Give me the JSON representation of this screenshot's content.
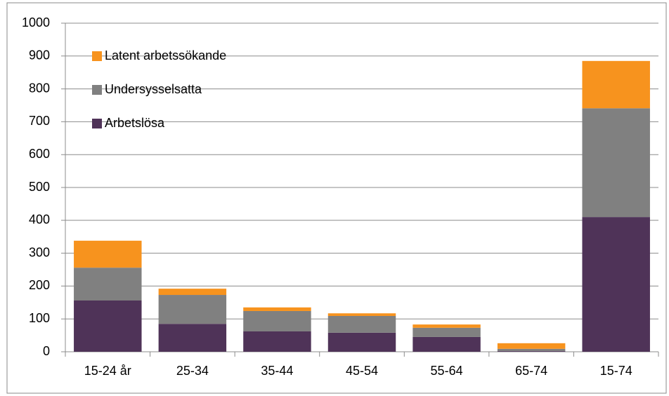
{
  "chart_data": {
    "type": "stacked-bar",
    "categories": [
      "15-24 år",
      "25-34",
      "35-44",
      "45-54",
      "55-64",
      "65-74",
      "15-74"
    ],
    "series": [
      {
        "name": "Arbetslösa",
        "color": "#4f3358",
        "values": [
          156,
          85,
          62,
          58,
          45,
          2,
          410
        ]
      },
      {
        "name": "Undersysselsatta",
        "color": "#808080",
        "values": [
          100,
          88,
          62,
          51,
          28,
          7,
          331
        ]
      },
      {
        "name": "Latent arbetssökande",
        "color": "#f7931e",
        "values": [
          82,
          19,
          11,
          8,
          10,
          17,
          144
        ]
      }
    ],
    "ylim": [
      0,
      1000
    ],
    "yticks": [
      0,
      100,
      200,
      300,
      400,
      500,
      600,
      700,
      800,
      900,
      1000
    ],
    "grid": true,
    "legend": "upper-left"
  }
}
